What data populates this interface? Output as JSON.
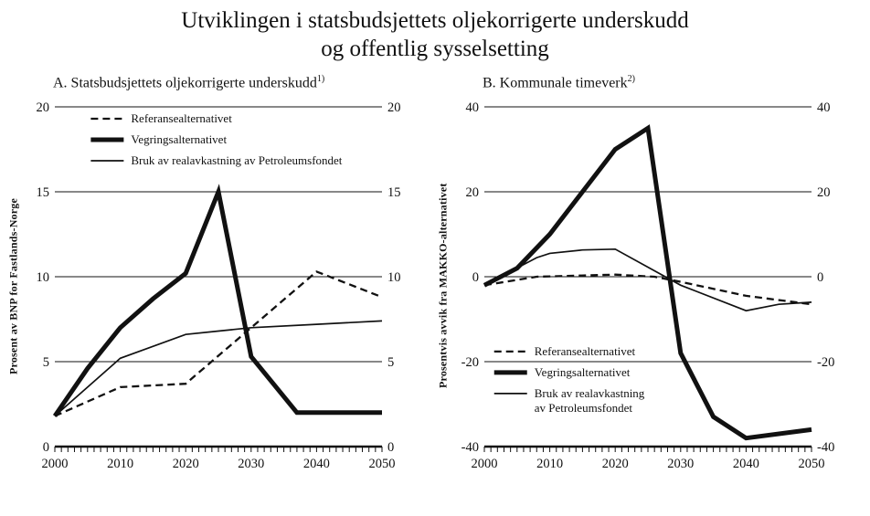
{
  "title": {
    "line1": "Utviklingen i statsbudsjettets oljekorrigerte underskudd",
    "line2": "og offentlig sysselsetting"
  },
  "line_color": "#111111",
  "chart_data": [
    {
      "type": "line",
      "panel_label": "A. Statsbudsjettets oljekorrigerte underskudd",
      "footnote_marker": "1)",
      "ylabel": "Prosent av BNP for Fastlands-Norge",
      "xlabel": "",
      "xlim": [
        2000,
        2050
      ],
      "ylim": [
        0,
        20
      ],
      "yticks": [
        0,
        5,
        10,
        15,
        20
      ],
      "xticks": [
        2000,
        2010,
        2020,
        2030,
        2040,
        2050
      ],
      "minor_x_step": 1,
      "grid": true,
      "legend_pos": {
        "fx": 0.11,
        "fy": 0.035
      },
      "series": [
        {
          "name": "Referansealternativet",
          "style": "dashed",
          "label_lines": [
            "Referansealternativet"
          ],
          "points": [
            [
              2000,
              1.8
            ],
            [
              2010,
              3.5
            ],
            [
              2020,
              3.7
            ],
            [
              2030,
              7.0
            ],
            [
              2040,
              10.3
            ],
            [
              2050,
              8.8
            ]
          ]
        },
        {
          "name": "Vegringsalternativet",
          "style": "thick",
          "label_lines": [
            "Vegringsalternativet"
          ],
          "points": [
            [
              2000,
              1.8
            ],
            [
              2005,
              4.6
            ],
            [
              2010,
              7.0
            ],
            [
              2015,
              8.7
            ],
            [
              2020,
              10.2
            ],
            [
              2025,
              15.0
            ],
            [
              2030,
              5.3
            ],
            [
              2037,
              2.0
            ],
            [
              2050,
              2.0
            ]
          ]
        },
        {
          "name": "Bruk av realavkastning av Petroleumsfondet",
          "style": "thin",
          "label_lines": [
            "Bruk av realavkastning av Petroleumsfondet"
          ],
          "points": [
            [
              2000,
              1.8
            ],
            [
              2010,
              5.2
            ],
            [
              2020,
              6.6
            ],
            [
              2025,
              6.8
            ],
            [
              2030,
              7.0
            ],
            [
              2040,
              7.2
            ],
            [
              2050,
              7.4
            ]
          ]
        }
      ]
    },
    {
      "type": "line",
      "panel_label": "B. Kommunale timeverk",
      "footnote_marker": "2)",
      "ylabel": "Prosentvis avvik fra MAKKO-alternativet",
      "xlabel": "",
      "xlim": [
        2000,
        2050
      ],
      "ylim": [
        -40,
        40
      ],
      "yticks": [
        -40,
        -20,
        0,
        20,
        40
      ],
      "xticks": [
        2000,
        2010,
        2020,
        2030,
        2040,
        2050
      ],
      "minor_x_step": 1,
      "grid": true,
      "legend_pos": {
        "fx": 0.03,
        "fy": 0.72
      },
      "series": [
        {
          "name": "Referansealternativet",
          "style": "dashed",
          "label_lines": [
            "Referansealternativet"
          ],
          "points": [
            [
              2000,
              -2
            ],
            [
              2008,
              0
            ],
            [
              2020,
              0.5
            ],
            [
              2026,
              0
            ],
            [
              2030,
              -1.2
            ],
            [
              2040,
              -4.5
            ],
            [
              2050,
              -6.5
            ]
          ]
        },
        {
          "name": "Vegringsalternativet",
          "style": "thick",
          "label_lines": [
            "Vegringsalternativet"
          ],
          "points": [
            [
              2000,
              -2
            ],
            [
              2005,
              2
            ],
            [
              2010,
              10
            ],
            [
              2015,
              20
            ],
            [
              2020,
              30
            ],
            [
              2025,
              35
            ],
            [
              2030,
              -18
            ],
            [
              2035,
              -33
            ],
            [
              2040,
              -38
            ],
            [
              2050,
              -36
            ]
          ]
        },
        {
          "name": "Bruk av realavkastning av Petroleumsfondet",
          "style": "thin",
          "label_lines": [
            "Bruk av realavkastning",
            "av Petroleumsfondet"
          ],
          "points": [
            [
              2000,
              -2
            ],
            [
              2008,
              4.5
            ],
            [
              2010,
              5.5
            ],
            [
              2015,
              6.3
            ],
            [
              2020,
              6.5
            ],
            [
              2030,
              -2
            ],
            [
              2040,
              -8
            ],
            [
              2045,
              -6.5
            ],
            [
              2050,
              -6
            ]
          ]
        }
      ]
    }
  ]
}
